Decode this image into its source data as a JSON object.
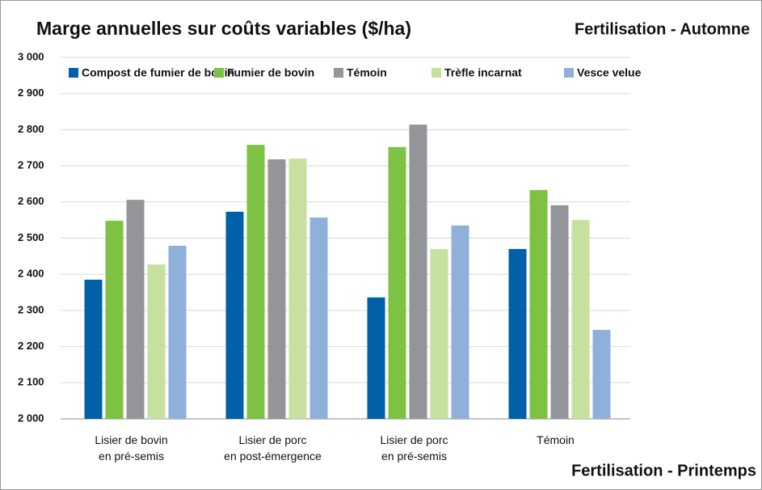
{
  "chart_data": {
    "type": "bar",
    "title": "Marge annuelles sur coûts variables ($/ha)",
    "annotations": [
      "Fertilisation -  Automne",
      "Fertilisation -  Printemps"
    ],
    "categories": [
      "Lisier de bovin\nen pré-semis",
      "Lisier de porc\nen post-émergence",
      "Lisier de porc\nen pré-semis",
      "Témoin"
    ],
    "series": [
      {
        "name": "Compost de fumier de bovin",
        "color": "#0060a8",
        "values": [
          2385,
          2573,
          2336,
          2470
        ]
      },
      {
        "name": "Fumier de bovin",
        "color": "#7dc242",
        "values": [
          2548,
          2758,
          2752,
          2633
        ]
      },
      {
        "name": "Témoin",
        "color": "#939598",
        "values": [
          2606,
          2718,
          2814,
          2591
        ]
      },
      {
        "name": "Trèfle incarnat",
        "color": "#c6e09f",
        "values": [
          2427,
          2720,
          2470,
          2550
        ]
      },
      {
        "name": "Vesce velue",
        "color": "#8fb0d9",
        "values": [
          2479,
          2557,
          2535,
          2246
        ]
      }
    ],
    "ylim": [
      2000,
      3000
    ],
    "yticks": [
      {
        "value": 2000,
        "label": "2 000"
      },
      {
        "value": 2100,
        "label": "2 100"
      },
      {
        "value": 2200,
        "label": "2 200"
      },
      {
        "value": 2300,
        "label": "2 300"
      },
      {
        "value": 2400,
        "label": "2 400"
      },
      {
        "value": 2500,
        "label": "2 500"
      },
      {
        "value": 2600,
        "label": "2 600"
      },
      {
        "value": 2700,
        "label": "2 700"
      },
      {
        "value": 2800,
        "label": "2 800"
      },
      {
        "value": 2900,
        "label": "2 900"
      },
      {
        "value": 3000,
        "label": "3 000"
      }
    ],
    "grid": true,
    "legend": "top"
  }
}
